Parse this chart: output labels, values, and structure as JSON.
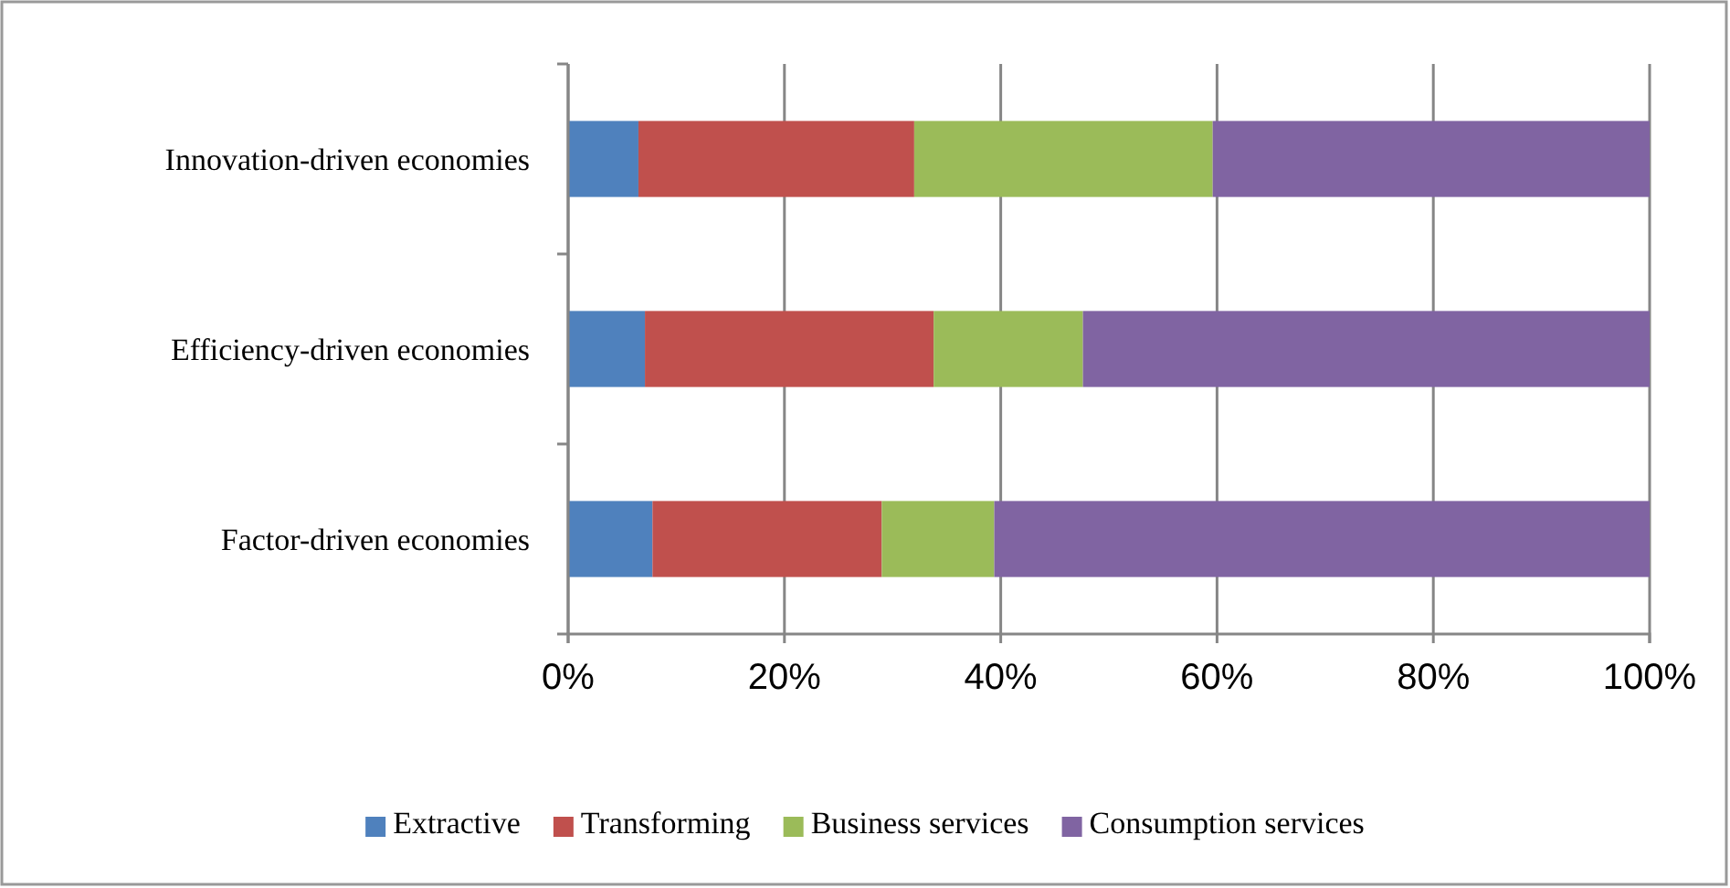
{
  "chart_data": {
    "type": "bar",
    "orientation": "horizontal",
    "stacked": true,
    "categories": [
      "Innovation-driven economies",
      "Efficiency-driven economies",
      "Factor-driven economies"
    ],
    "series": [
      {
        "name": "Extractive",
        "color": "#4f81bd",
        "values": [
          6.5,
          7.1,
          7.8
        ]
      },
      {
        "name": "Transforming",
        "color": "#c0504d",
        "values": [
          25.5,
          26.7,
          21.2
        ]
      },
      {
        "name": "Business services",
        "color": "#9bbb59",
        "values": [
          27.6,
          13.8,
          10.4
        ]
      },
      {
        "name": "Consumption services",
        "color": "#8064a2",
        "values": [
          40.4,
          52.4,
          60.6
        ]
      }
    ],
    "xlim": [
      0,
      100
    ],
    "xticks": [
      {
        "value": 0,
        "label": "0%"
      },
      {
        "value": 20,
        "label": "20%"
      },
      {
        "value": 40,
        "label": "40%"
      },
      {
        "value": 60,
        "label": "60%"
      },
      {
        "value": 80,
        "label": "80%"
      },
      {
        "value": 100,
        "label": "100%"
      }
    ],
    "grid": "x",
    "legend": "bottom"
  }
}
